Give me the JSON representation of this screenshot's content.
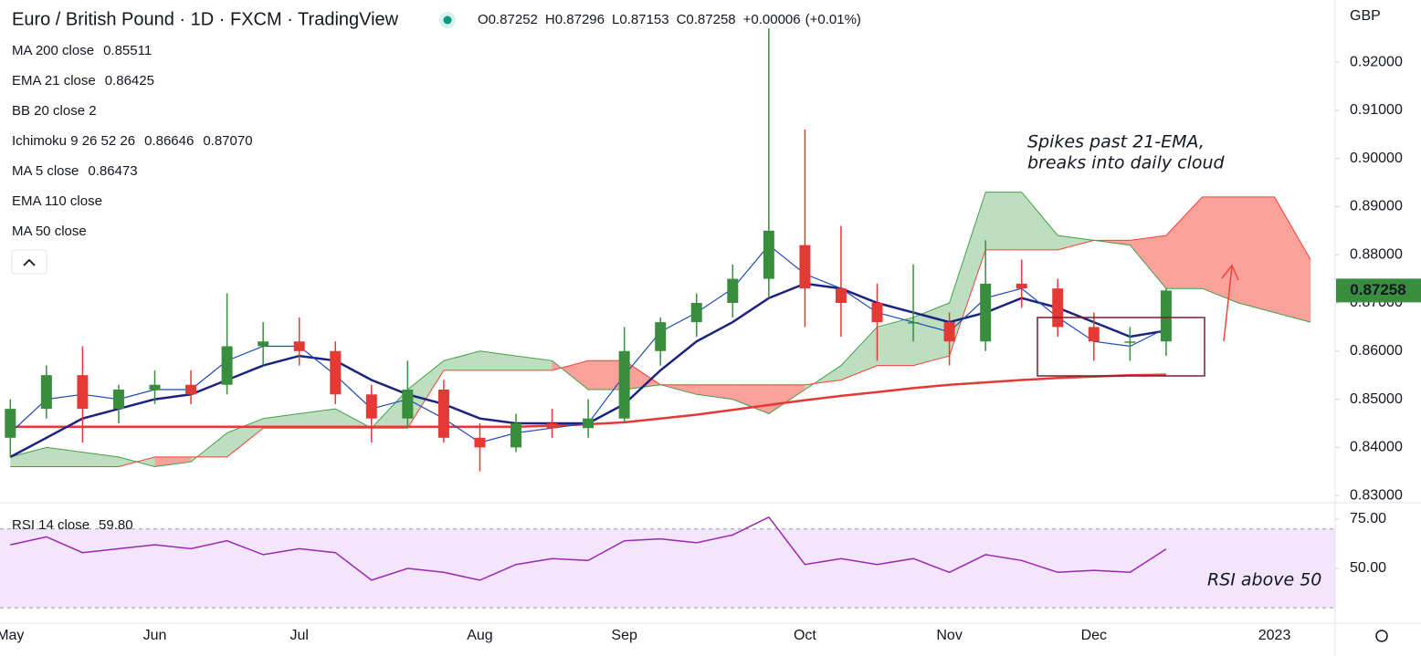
{
  "chart_data": [
    {
      "type": "candlestick",
      "title": "Euro / British Pound · 1D · FXCM · TradingView",
      "ohlc_header": [
        {
          "label": "O",
          "value": "0.87252"
        },
        {
          "label": "H",
          "value": "0.87296"
        },
        {
          "label": "L",
          "value": "0.87153"
        },
        {
          "label": "C",
          "value": "0.87258"
        },
        {
          "label": "+0.00006",
          "value": "(+0.01%)"
        }
      ],
      "currency": "GBP",
      "categories": [
        "May",
        null,
        null,
        null,
        "Jun",
        null,
        null,
        null,
        "Jul",
        null,
        null,
        null,
        null,
        "Aug",
        null,
        null,
        null,
        "Sep",
        null,
        null,
        null,
        null,
        "Oct",
        null,
        null,
        null,
        "Nov",
        null,
        null,
        null,
        "Dec",
        null,
        null,
        null,
        null,
        "2023",
        null
      ],
      "open": [
        0.842,
        0.848,
        0.855,
        0.848,
        0.852,
        0.853,
        0.853,
        0.861,
        0.862,
        0.86,
        0.851,
        0.846,
        0.852,
        0.842,
        0.84,
        0.845,
        0.844,
        0.846,
        0.86,
        0.866,
        0.87,
        0.875,
        0.882,
        0.873,
        0.87,
        0.866,
        0.866,
        0.862,
        0.874,
        0.873,
        0.865,
        0.862,
        0.862,
        null,
        null,
        null,
        null
      ],
      "high": [
        0.85,
        0.857,
        0.861,
        0.853,
        0.856,
        0.856,
        0.872,
        0.866,
        0.867,
        0.862,
        0.853,
        0.858,
        0.854,
        0.845,
        0.847,
        0.848,
        0.85,
        0.865,
        0.867,
        0.872,
        0.878,
        0.927,
        0.906,
        0.886,
        0.874,
        0.878,
        0.868,
        0.883,
        0.879,
        0.875,
        0.868,
        0.865,
        0.873,
        null,
        null,
        null,
        null
      ],
      "low": [
        0.838,
        0.846,
        0.841,
        0.845,
        0.849,
        0.849,
        0.851,
        0.857,
        0.857,
        0.849,
        0.841,
        0.844,
        0.841,
        0.835,
        0.839,
        0.842,
        0.842,
        0.845,
        0.857,
        0.863,
        0.867,
        0.871,
        0.865,
        0.863,
        0.858,
        0.862,
        0.857,
        0.86,
        0.869,
        0.863,
        0.858,
        0.858,
        0.859,
        null,
        null,
        null,
        null
      ],
      "close": [
        0.848,
        0.855,
        0.848,
        0.852,
        0.853,
        0.851,
        0.861,
        0.862,
        0.86,
        0.851,
        0.846,
        0.852,
        0.842,
        0.84,
        0.845,
        0.844,
        0.846,
        0.86,
        0.866,
        0.87,
        0.875,
        0.885,
        0.873,
        0.87,
        0.866,
        0.866,
        0.862,
        0.874,
        0.873,
        0.865,
        0.862,
        0.862,
        0.87258,
        null,
        null,
        null,
        null
      ],
      "up_color": "#388e3c",
      "down_color": "#e53935",
      "last_price": {
        "value": 0.87258,
        "label": "0.87258"
      },
      "ylim": [
        0.8287,
        0.9329
      ],
      "yticks": [
        {
          "value": 0.92,
          "label": "0.92000"
        },
        {
          "value": 0.91,
          "label": "0.91000"
        },
        {
          "value": 0.9,
          "label": "0.90000"
        },
        {
          "value": 0.89,
          "label": "0.89000"
        },
        {
          "value": 0.88,
          "label": "0.88000"
        },
        {
          "value": 0.87,
          "label": "0.87000"
        },
        {
          "value": 0.86,
          "label": "0.86000"
        },
        {
          "value": 0.85,
          "label": "0.85000"
        },
        {
          "value": 0.84,
          "label": "0.84000"
        },
        {
          "value": 0.83,
          "label": "0.83000"
        }
      ],
      "overlays": [
        {
          "name": "MA 200 close",
          "value_label": "0.85511",
          "color": "#e53935",
          "width": 2.5,
          "values": [
            0.8443,
            0.8443,
            0.8443,
            0.8443,
            0.8443,
            0.8443,
            0.8443,
            0.8443,
            0.8443,
            0.8443,
            0.8443,
            0.8443,
            0.8443,
            0.8443,
            0.8443,
            0.8445,
            0.8448,
            0.8452,
            0.846,
            0.8468,
            0.8478,
            0.8488,
            0.8498,
            0.8507,
            0.8515,
            0.8523,
            0.853,
            0.8535,
            0.854,
            0.8544,
            0.8547,
            0.855,
            0.85511,
            null,
            null,
            null,
            null
          ]
        },
        {
          "name": "EMA 21 close",
          "value_label": "0.86425",
          "color": "#1a237e",
          "width": 2.5,
          "values": [
            0.838,
            0.842,
            0.846,
            0.848,
            0.85,
            0.851,
            0.854,
            0.857,
            0.859,
            0.858,
            0.854,
            0.851,
            0.849,
            0.846,
            0.845,
            0.845,
            0.845,
            0.849,
            0.856,
            0.862,
            0.866,
            0.871,
            0.874,
            0.873,
            0.87,
            0.868,
            0.866,
            0.868,
            0.871,
            0.869,
            0.866,
            0.863,
            0.86425,
            null,
            null,
            null,
            null
          ]
        },
        {
          "name": "MA 5 close",
          "value_label": "0.86473",
          "color": "#1e4bb8",
          "width": 1.2,
          "values": [
            0.843,
            0.85,
            0.851,
            0.85,
            0.852,
            0.852,
            0.858,
            0.861,
            0.861,
            0.855,
            0.848,
            0.85,
            0.846,
            0.841,
            0.843,
            0.844,
            0.845,
            0.855,
            0.864,
            0.868,
            0.873,
            0.882,
            0.876,
            0.873,
            0.868,
            0.866,
            0.864,
            0.871,
            0.873,
            0.867,
            0.862,
            0.861,
            0.86473,
            null,
            null,
            null,
            null
          ]
        }
      ],
      "cloud": {
        "name": "Ichimoku 9 26 52 26",
        "value_labels": [
          "0.86646",
          "0.87070"
        ],
        "up_color": "#43a047",
        "down_color": "#f44336",
        "span_a": [
          0.838,
          0.84,
          0.839,
          0.838,
          0.836,
          0.837,
          0.843,
          0.846,
          0.847,
          0.848,
          0.844,
          0.852,
          0.858,
          0.86,
          0.859,
          0.858,
          0.852,
          0.852,
          0.853,
          0.851,
          0.85,
          0.847,
          0.852,
          0.857,
          0.865,
          0.867,
          0.87,
          0.893,
          0.893,
          0.884,
          0.883,
          0.882,
          0.873,
          0.873,
          0.87,
          0.868,
          0.866
        ],
        "span_b": [
          0.836,
          0.836,
          0.836,
          0.836,
          0.838,
          0.838,
          0.838,
          0.844,
          0.844,
          0.844,
          0.844,
          0.844,
          0.856,
          0.856,
          0.856,
          0.856,
          0.858,
          0.858,
          0.853,
          0.853,
          0.853,
          0.853,
          0.853,
          0.854,
          0.857,
          0.857,
          0.859,
          0.881,
          0.881,
          0.881,
          0.883,
          0.883,
          0.884,
          0.892,
          0.892,
          0.892,
          0.879
        ]
      },
      "hidden_indicators": [
        "BB 20 close 2",
        "EMA 110 close",
        "MA 50 close"
      ],
      "annotation": [
        "Spikes past 21-EMA,",
        "breaks into daily cloud"
      ]
    },
    {
      "type": "line",
      "title": "RSI 14 close",
      "value_label": "59.80",
      "color": "#9c27b0",
      "values": [
        62,
        66,
        58,
        60,
        62,
        60,
        64,
        57,
        60,
        58,
        44,
        50,
        48,
        44,
        52,
        55,
        54,
        64,
        65,
        63,
        67,
        76,
        52,
        55,
        52,
        55,
        48,
        57,
        54,
        48,
        49,
        48,
        59.8,
        null,
        null,
        null,
        null
      ],
      "band": [
        30,
        70
      ],
      "band_color": "#f3e5fc",
      "ylim": [
        23.6,
        82.4
      ],
      "yticks": [
        {
          "value": 75,
          "label": "75.00"
        },
        {
          "value": 50,
          "label": "50.00"
        }
      ],
      "annotation": "RSI above 50"
    }
  ]
}
